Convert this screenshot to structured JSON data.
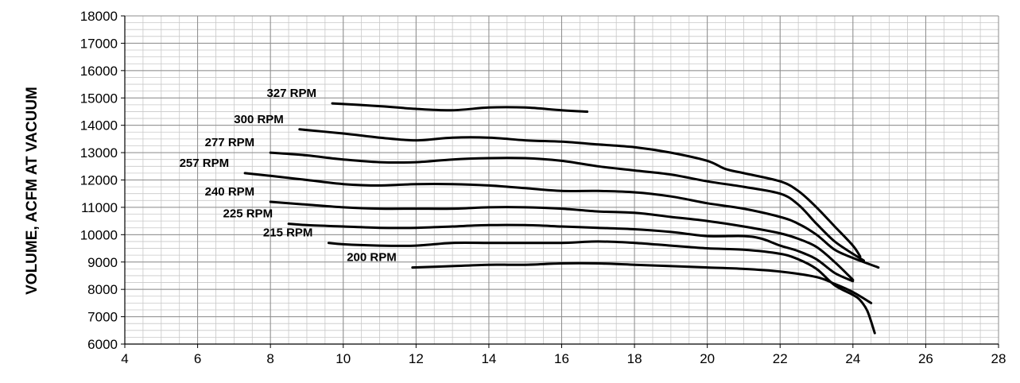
{
  "chart_data": {
    "type": "line",
    "title": "",
    "xlabel": "",
    "ylabel": "VOLUME, ACFM AT VACUUM",
    "xlim": [
      4,
      28
    ],
    "ylim": [
      6000,
      18000
    ],
    "x_ticks": [
      4,
      6,
      8,
      10,
      12,
      14,
      16,
      18,
      20,
      22,
      24,
      26,
      28
    ],
    "y_ticks": [
      6000,
      7000,
      8000,
      9000,
      10000,
      11000,
      12000,
      13000,
      14000,
      15000,
      16000,
      17000,
      18000
    ],
    "x_minor_step": 0.5,
    "y_minor_step": 250,
    "grid": true,
    "legend": "inline labels beside each curve",
    "series": [
      {
        "name": "327 RPM",
        "points": [
          [
            9.7,
            14800
          ],
          [
            11,
            14700
          ],
          [
            12,
            14600
          ],
          [
            13,
            14550
          ],
          [
            14,
            14650
          ],
          [
            15,
            14650
          ],
          [
            16,
            14550
          ],
          [
            16.7,
            14500
          ]
        ]
      },
      {
        "name": "300 RPM",
        "points": [
          [
            8.8,
            13850
          ],
          [
            10,
            13700
          ],
          [
            11,
            13550
          ],
          [
            12,
            13450
          ],
          [
            13,
            13550
          ],
          [
            14,
            13550
          ],
          [
            15,
            13450
          ],
          [
            16,
            13400
          ],
          [
            17,
            13300
          ],
          [
            18,
            13200
          ],
          [
            19,
            13000
          ],
          [
            20,
            12700
          ],
          [
            20.5,
            12400
          ],
          [
            21,
            12250
          ],
          [
            22,
            11950
          ],
          [
            22.5,
            11600
          ],
          [
            23,
            11000
          ],
          [
            23.5,
            10300
          ],
          [
            24,
            9600
          ],
          [
            24.2,
            9200
          ]
        ]
      },
      {
        "name": "277 RPM",
        "points": [
          [
            8,
            13000
          ],
          [
            9,
            12900
          ],
          [
            10,
            12750
          ],
          [
            11,
            12650
          ],
          [
            12,
            12650
          ],
          [
            13,
            12750
          ],
          [
            14,
            12800
          ],
          [
            15,
            12800
          ],
          [
            16,
            12700
          ],
          [
            17,
            12500
          ],
          [
            18,
            12350
          ],
          [
            19,
            12200
          ],
          [
            20,
            11950
          ],
          [
            21,
            11750
          ],
          [
            22,
            11500
          ],
          [
            22.5,
            11100
          ],
          [
            23,
            10400
          ],
          [
            23.5,
            9750
          ],
          [
            24,
            9300
          ],
          [
            24.3,
            9050
          ]
        ]
      },
      {
        "name": "257 RPM",
        "points": [
          [
            7.3,
            12250
          ],
          [
            8,
            12150
          ],
          [
            9,
            12000
          ],
          [
            10,
            11850
          ],
          [
            11,
            11800
          ],
          [
            12,
            11850
          ],
          [
            13,
            11850
          ],
          [
            14,
            11800
          ],
          [
            15,
            11700
          ],
          [
            16,
            11600
          ],
          [
            17,
            11600
          ],
          [
            18,
            11550
          ],
          [
            19,
            11400
          ],
          [
            20,
            11150
          ],
          [
            21,
            10950
          ],
          [
            22,
            10650
          ],
          [
            22.5,
            10400
          ],
          [
            23,
            10000
          ],
          [
            23.5,
            9450
          ],
          [
            24,
            9150
          ],
          [
            24.7,
            8800
          ]
        ]
      },
      {
        "name": "240 RPM",
        "points": [
          [
            8,
            11200
          ],
          [
            9,
            11100
          ],
          [
            10,
            11000
          ],
          [
            11,
            10950
          ],
          [
            12,
            10950
          ],
          [
            13,
            10950
          ],
          [
            14,
            11000
          ],
          [
            15,
            11000
          ],
          [
            16,
            10950
          ],
          [
            17,
            10850
          ],
          [
            18,
            10800
          ],
          [
            19,
            10650
          ],
          [
            20,
            10500
          ],
          [
            21,
            10300
          ],
          [
            22,
            10050
          ],
          [
            22.5,
            9850
          ],
          [
            23,
            9550
          ],
          [
            23.5,
            9000
          ],
          [
            24,
            8350
          ]
        ]
      },
      {
        "name": "225 RPM",
        "points": [
          [
            8.5,
            10400
          ],
          [
            9,
            10350
          ],
          [
            10,
            10300
          ],
          [
            11,
            10250
          ],
          [
            12,
            10250
          ],
          [
            13,
            10300
          ],
          [
            14,
            10350
          ],
          [
            15,
            10350
          ],
          [
            16,
            10300
          ],
          [
            17,
            10250
          ],
          [
            18,
            10200
          ],
          [
            19,
            10100
          ],
          [
            20,
            9950
          ],
          [
            21,
            9950
          ],
          [
            21.5,
            9850
          ],
          [
            22,
            9600
          ],
          [
            22.5,
            9400
          ],
          [
            23,
            9100
          ],
          [
            23.5,
            8600
          ],
          [
            24,
            8300
          ]
        ]
      },
      {
        "name": "215 RPM",
        "points": [
          [
            9.6,
            9700
          ],
          [
            10,
            9650
          ],
          [
            11,
            9600
          ],
          [
            12,
            9600
          ],
          [
            13,
            9700
          ],
          [
            14,
            9700
          ],
          [
            15,
            9700
          ],
          [
            16,
            9700
          ],
          [
            17,
            9750
          ],
          [
            18,
            9700
          ],
          [
            19,
            9600
          ],
          [
            20,
            9500
          ],
          [
            21,
            9450
          ],
          [
            22,
            9300
          ],
          [
            22.5,
            9100
          ],
          [
            23,
            8750
          ],
          [
            23.5,
            8150
          ],
          [
            24,
            7800
          ],
          [
            24.2,
            7600
          ],
          [
            24.4,
            7200
          ],
          [
            24.6,
            6400
          ]
        ]
      },
      {
        "name": "200 RPM",
        "points": [
          [
            11.9,
            8800
          ],
          [
            13,
            8850
          ],
          [
            14,
            8900
          ],
          [
            15,
            8900
          ],
          [
            16,
            8950
          ],
          [
            17,
            8950
          ],
          [
            18,
            8900
          ],
          [
            19,
            8850
          ],
          [
            20,
            8800
          ],
          [
            21,
            8750
          ],
          [
            22,
            8650
          ],
          [
            23,
            8450
          ],
          [
            23.5,
            8200
          ],
          [
            24,
            7900
          ],
          [
            24.5,
            7500
          ]
        ]
      }
    ]
  }
}
